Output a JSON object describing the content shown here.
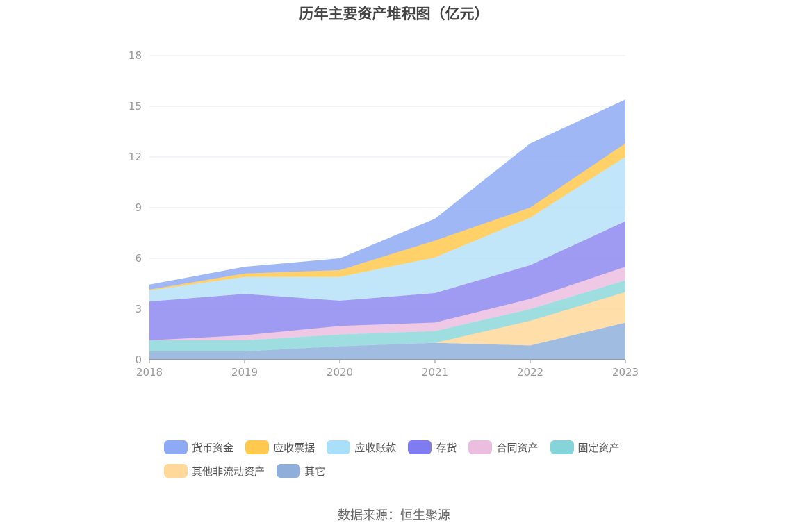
{
  "chart_data": {
    "type": "area",
    "stacked": true,
    "title": "历年主要资产堆积图（亿元）",
    "x": [
      "2018",
      "2019",
      "2020",
      "2021",
      "2022",
      "2023"
    ],
    "y_ticks": [
      "0",
      "3",
      "6",
      "9",
      "12",
      "15",
      "18"
    ],
    "ylim": [
      0,
      18
    ],
    "grid": true,
    "legend_position": "bottom",
    "series": [
      {
        "name": "其它",
        "color": "#8FB0DB",
        "values": [
          0.5,
          0.5,
          0.8,
          1.0,
          0.85,
          2.2
        ]
      },
      {
        "name": "其他非流动资产",
        "color": "#FFD89A",
        "values": [
          0.0,
          0.0,
          0.0,
          0.0,
          1.45,
          1.8
        ]
      },
      {
        "name": "固定资产",
        "color": "#8DD7DA",
        "values": [
          0.65,
          0.65,
          0.7,
          0.7,
          0.7,
          0.7
        ]
      },
      {
        "name": "合同资产",
        "color": "#EBBEDF",
        "values": [
          0.0,
          0.3,
          0.5,
          0.5,
          0.6,
          0.8
        ]
      },
      {
        "name": "存货",
        "color": "#8F8AF0",
        "values": [
          2.3,
          2.45,
          1.5,
          1.75,
          2.0,
          2.7
        ]
      },
      {
        "name": "应收账款",
        "color": "#B6E2F8",
        "values": [
          0.65,
          1.0,
          1.4,
          2.1,
          2.8,
          3.8
        ]
      },
      {
        "name": "应收票据",
        "color": "#FFC94D",
        "values": [
          0.05,
          0.2,
          0.4,
          1.0,
          0.6,
          0.8
        ]
      },
      {
        "name": "货币资金",
        "color": "#8FAAF5",
        "values": [
          0.3,
          0.4,
          0.7,
          1.3,
          3.8,
          2.6
        ]
      }
    ]
  },
  "legend": [
    {
      "label": "货币资金",
      "color": "#8FAAF5"
    },
    {
      "label": "应收票据",
      "color": "#FFC94D"
    },
    {
      "label": "应收账款",
      "color": "#A9DFF9"
    },
    {
      "label": "存货",
      "color": "#7F7BF0"
    },
    {
      "label": "合同资产",
      "color": "#EBBEDF"
    },
    {
      "label": "固定资产",
      "color": "#84D4D9"
    },
    {
      "label": "其他非流动资产",
      "color": "#FFD89A"
    },
    {
      "label": "其它",
      "color": "#8FAEDA"
    }
  ],
  "source": "数据来源：恒生聚源"
}
